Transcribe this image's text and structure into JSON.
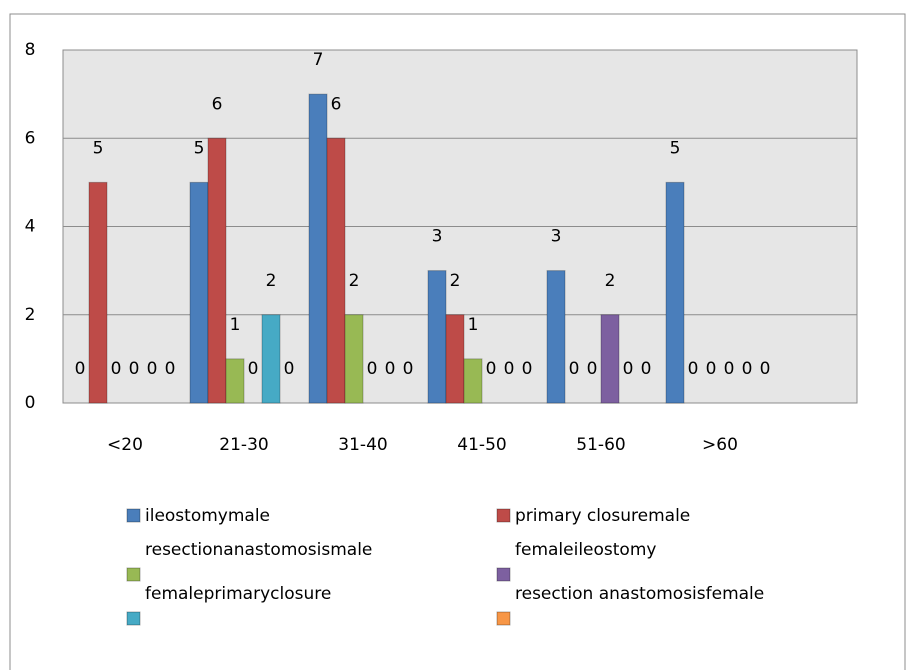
{
  "chart_data": {
    "type": "bar",
    "categories": [
      "<20",
      "21-30",
      "31-40",
      "41-50",
      "51-60",
      ">60"
    ],
    "series": [
      {
        "name": "ileostomymale",
        "color": "#4a7ebb",
        "values": [
          0,
          5,
          7,
          3,
          3,
          5
        ]
      },
      {
        "name": "primary closuremale",
        "color": "#be4b48",
        "values": [
          5,
          6,
          6,
          2,
          0,
          0
        ]
      },
      {
        "name": "resectionanastomosismale",
        "color": "#98b954",
        "values": [
          0,
          1,
          2,
          1,
          0,
          0
        ]
      },
      {
        "name": "femaleileostomy",
        "color": "#7d60a0",
        "values": [
          0,
          0,
          0,
          0,
          2,
          0
        ]
      },
      {
        "name": "femaleprimaryclosure",
        "color": "#46aac5",
        "values": [
          0,
          2,
          0,
          0,
          0,
          0
        ]
      },
      {
        "name": "resection anastomosisfemale",
        "color": "#f79646",
        "values": [
          0,
          0,
          0,
          0,
          0,
          0
        ]
      }
    ],
    "ylim": [
      0,
      8
    ],
    "yticks": [
      0,
      2,
      4,
      6,
      8
    ],
    "grid": true,
    "legend": "bottom"
  }
}
